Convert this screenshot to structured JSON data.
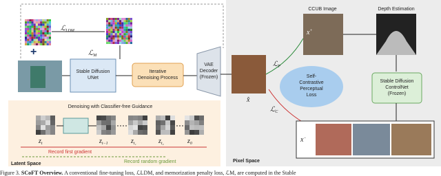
{
  "loss_ldm": {
    "symbol": "ℒ",
    "sub": "LDM"
  },
  "loss_m": {
    "symbol": "ℒ",
    "sub": "M"
  },
  "unet": {
    "line1": "Stable Diffusion",
    "line2": "UNet"
  },
  "denoise": {
    "line1": "Iterative",
    "line2": "Denoising Process"
  },
  "vae": {
    "line1": "VAE",
    "line2": "Decoder",
    "line3": "(Frozen)"
  },
  "x_hat": "x̂",
  "ccub": {
    "label": "CCUB Image",
    "x": "x",
    "sup": "+"
  },
  "depth": "Depth Estimation",
  "loss_p": {
    "symbol": "ℒ",
    "sub": "P"
  },
  "loss_c": {
    "symbol": "ℒ",
    "sub": "C"
  },
  "perceptual": {
    "line1": "Self-",
    "line2": "Contrastive",
    "line3": "Perceptual",
    "line4": "Loss"
  },
  "controlnet": {
    "line1": "Stable Diffusion",
    "line2": "ControlNet",
    "line3": "(Frozen)"
  },
  "x_neg": {
    "x": "x",
    "sup": "−"
  },
  "pixel_space": "Pixel Space",
  "guidance": "Denoising with Classifier-free Guidance",
  "latents": [
    {
      "z": "z",
      "sub": "t"
    },
    {
      "z": "z",
      "sub": "t−1"
    },
    {
      "z": "z",
      "sub": "t₁"
    },
    {
      "z": "z",
      "sub": "t₂"
    },
    {
      "z": "z",
      "sub": "0"
    }
  ],
  "record_first": "Record first gradient",
  "record_random": "Record random gradient",
  "latent_space": "Latent Space",
  "caption": {
    "label": "Figure 3.",
    "title": "SCoFT Overview.",
    "text": "A conventional fine-tuning loss, ℒLDM, and memorization penalty loss, ℒM, are computed in the Stable"
  }
}
